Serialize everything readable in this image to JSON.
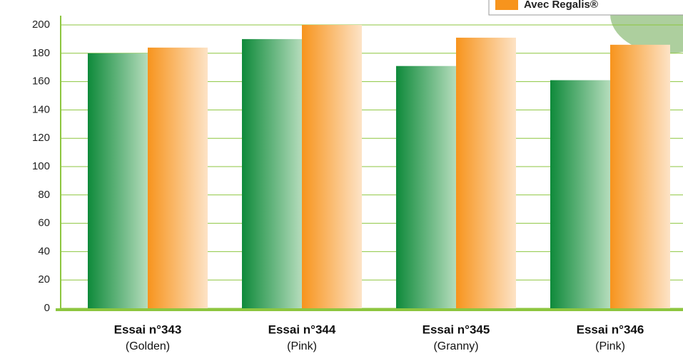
{
  "chart_data": {
    "type": "bar",
    "categories": [
      "Essai n°343",
      "Essai n°344",
      "Essai n°345",
      "Essai n°346"
    ],
    "category_subtitles": [
      "(Golden)",
      "(Pink)",
      "(Granny)",
      "(Pink)"
    ],
    "series": [
      {
        "color": "#0e8a3a",
        "values": [
          180,
          190,
          171,
          161
        ]
      },
      {
        "name": "Avec Regalis®",
        "color": "#f7941d",
        "values": [
          184,
          200,
          191,
          186
        ]
      }
    ],
    "ylim": [
      0,
      200
    ],
    "yticks": [
      0,
      20,
      40,
      60,
      80,
      100,
      120,
      140,
      160,
      180,
      200
    ],
    "grid": true,
    "legend": "top-right"
  }
}
